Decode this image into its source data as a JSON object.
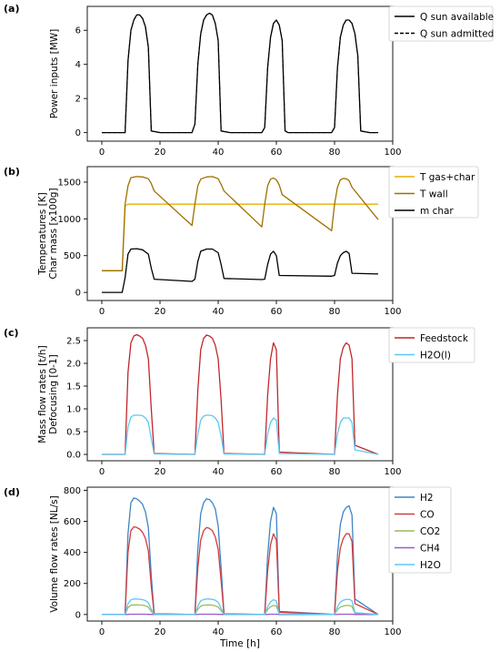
{
  "chart_data": [
    {
      "panel_label": "(a)",
      "type": "line",
      "xlabel": "",
      "ylabel": "Power inputs [MW]",
      "xlim": [
        -5,
        100
      ],
      "ylim": [
        -0.5,
        7.4
      ],
      "xticks": [
        0,
        20,
        40,
        60,
        80,
        100
      ],
      "yticks": [
        0,
        2,
        4,
        6
      ],
      "grid": false,
      "legend_position": "right",
      "series": [
        {
          "name": "Q sun available",
          "style": "solid",
          "color": "#000000",
          "x": [
            0,
            8,
            9,
            10,
            11,
            12,
            13,
            14,
            15,
            16,
            17,
            20,
            31,
            32,
            33,
            34,
            35,
            36,
            37,
            38,
            39,
            40,
            41,
            44,
            55,
            56,
            57,
            58,
            59,
            60,
            61,
            62,
            63,
            64,
            65,
            68,
            79,
            80,
            81,
            82,
            83,
            84,
            85,
            86,
            87,
            88,
            89,
            92,
            95
          ],
          "y": [
            0,
            0,
            4.2,
            6.0,
            6.6,
            6.9,
            6.9,
            6.7,
            6.2,
            5.0,
            0.1,
            0,
            0,
            0.5,
            4.0,
            5.8,
            6.6,
            6.9,
            7.0,
            6.9,
            6.4,
            5.4,
            0.1,
            0,
            0,
            0.3,
            3.8,
            5.6,
            6.4,
            6.6,
            6.3,
            5.4,
            0.1,
            0,
            0,
            0,
            0,
            0.3,
            3.8,
            5.6,
            6.3,
            6.6,
            6.6,
            6.4,
            5.8,
            4.5,
            0.1,
            0,
            0
          ]
        },
        {
          "name": "Q sun admitted",
          "style": "dashed",
          "color": "#000000",
          "x": [
            0,
            8,
            9,
            10,
            11,
            12,
            13,
            14,
            15,
            16,
            17,
            20,
            31,
            32,
            33,
            34,
            35,
            36,
            37,
            38,
            39,
            40,
            41,
            44,
            55,
            56,
            57,
            58,
            59,
            60,
            61,
            62,
            63,
            64,
            65,
            68,
            79,
            80,
            81,
            82,
            83,
            84,
            85,
            86,
            87,
            88,
            89,
            92,
            95
          ],
          "y": [
            0,
            0,
            4.2,
            6.0,
            6.6,
            6.9,
            6.9,
            6.7,
            6.2,
            5.0,
            0.1,
            0,
            0,
            0.5,
            4.0,
            5.8,
            6.6,
            6.9,
            7.0,
            6.9,
            6.4,
            5.4,
            0.1,
            0,
            0,
            0.3,
            3.8,
            5.6,
            6.4,
            6.6,
            6.3,
            5.4,
            0.1,
            0,
            0,
            0,
            0,
            0.3,
            3.8,
            5.6,
            6.3,
            6.6,
            6.6,
            6.4,
            5.8,
            4.5,
            0.1,
            0,
            0
          ]
        }
      ]
    },
    {
      "panel_label": "(b)",
      "type": "line",
      "xlabel": "",
      "ylabel": "Temperatures [K]\nChar mass [x100g]",
      "xlim": [
        -5,
        100
      ],
      "ylim": [
        -110,
        1710
      ],
      "xticks": [
        0,
        20,
        40,
        60,
        80,
        100
      ],
      "yticks": [
        0,
        500,
        1000,
        1500
      ],
      "grid": false,
      "legend_position": "right",
      "series": [
        {
          "name": "T gas+char",
          "color": "#e6b000",
          "x": [
            0,
            7,
            8,
            9,
            10,
            18,
            32,
            33,
            34,
            42,
            56,
            57,
            58,
            65,
            80,
            81,
            82,
            89,
            95
          ],
          "y": [
            295,
            295,
            1180,
            1200,
            1200,
            1200,
            1200,
            1200,
            1200,
            1200,
            1200,
            1200,
            1200,
            1200,
            1200,
            1200,
            1200,
            1200,
            1200
          ]
        },
        {
          "name": "T wall",
          "color": "#9e7000",
          "x": [
            0,
            7,
            8,
            9,
            10,
            12,
            14,
            16,
            17,
            18,
            31,
            32,
            33,
            34,
            36,
            38,
            40,
            41,
            42,
            55,
            56,
            57,
            58,
            59,
            60,
            61,
            62,
            79,
            80,
            81,
            82,
            83,
            84,
            85,
            86,
            95
          ],
          "y": [
            295,
            295,
            1200,
            1450,
            1560,
            1575,
            1570,
            1545,
            1480,
            1380,
            910,
            1200,
            1450,
            1540,
            1570,
            1575,
            1545,
            1470,
            1380,
            890,
            1200,
            1450,
            1540,
            1555,
            1530,
            1460,
            1330,
            840,
            1200,
            1430,
            1530,
            1550,
            1545,
            1520,
            1430,
            990
          ]
        },
        {
          "name": "m char",
          "color": "#000000",
          "x": [
            0,
            7,
            8,
            9,
            10,
            12,
            14,
            16,
            17,
            18,
            31,
            32,
            33,
            34,
            36,
            38,
            40,
            41,
            42,
            55,
            56,
            57,
            58,
            59,
            60,
            61,
            79,
            80,
            81,
            82,
            83,
            84,
            85,
            86,
            95
          ],
          "y": [
            0,
            0,
            200,
            520,
            590,
            595,
            580,
            520,
            330,
            180,
            150,
            180,
            420,
            560,
            590,
            590,
            540,
            380,
            190,
            175,
            180,
            380,
            520,
            560,
            500,
            230,
            220,
            230,
            400,
            500,
            540,
            560,
            530,
            260,
            250
          ]
        }
      ]
    },
    {
      "panel_label": "(c)",
      "type": "line",
      "xlabel": "",
      "ylabel": "Mass flow rates [t/h]\nDefocusing [0-1]",
      "xlim": [
        -5,
        100
      ],
      "ylim": [
        -0.14,
        2.78
      ],
      "xticks": [
        0,
        20,
        40,
        60,
        80,
        100
      ],
      "yticks": [
        0.0,
        0.5,
        1.0,
        1.5,
        2.0,
        2.5
      ],
      "grid": false,
      "legend_position": "right",
      "series": [
        {
          "name": "Feedstock",
          "color": "#c0272d",
          "x": [
            0,
            8,
            9,
            10,
            11,
            12,
            13,
            14,
            15,
            16,
            17,
            18,
            32,
            33,
            34,
            35,
            36,
            37,
            38,
            39,
            40,
            41,
            42,
            56,
            57,
            58,
            59,
            60,
            61,
            80,
            81,
            82,
            83,
            84,
            85,
            86,
            87,
            95
          ],
          "y": [
            0,
            0,
            1.8,
            2.45,
            2.6,
            2.63,
            2.6,
            2.55,
            2.4,
            2.1,
            1.0,
            0.02,
            0,
            1.4,
            2.3,
            2.55,
            2.62,
            2.6,
            2.55,
            2.4,
            2.1,
            1.2,
            0.02,
            0,
            1.3,
            2.1,
            2.45,
            2.3,
            0.05,
            0,
            1.3,
            2.1,
            2.35,
            2.45,
            2.4,
            2.1,
            0.2,
            0
          ]
        },
        {
          "name": "H2O(l)",
          "color": "#5bc8f5",
          "x": [
            0,
            8,
            9,
            10,
            11,
            12,
            13,
            14,
            15,
            16,
            17,
            18,
            32,
            33,
            34,
            35,
            36,
            37,
            38,
            39,
            40,
            41,
            42,
            56,
            57,
            58,
            59,
            60,
            61,
            80,
            81,
            82,
            83,
            84,
            85,
            86,
            87,
            95
          ],
          "y": [
            0,
            0,
            0.6,
            0.82,
            0.86,
            0.86,
            0.86,
            0.85,
            0.8,
            0.7,
            0.35,
            0.01,
            0,
            0.45,
            0.75,
            0.84,
            0.86,
            0.86,
            0.85,
            0.8,
            0.7,
            0.4,
            0.01,
            0,
            0.45,
            0.7,
            0.8,
            0.75,
            0.02,
            0,
            0.45,
            0.7,
            0.8,
            0.8,
            0.8,
            0.7,
            0.1,
            0
          ]
        }
      ]
    },
    {
      "panel_label": "(d)",
      "type": "line",
      "xlabel": "Time [h]",
      "ylabel": "Volume flow rates [NL/s]",
      "xlim": [
        -5,
        100
      ],
      "ylim": [
        -42,
        820
      ],
      "xticks": [
        0,
        20,
        40,
        60,
        80,
        100
      ],
      "yticks": [
        0,
        200,
        400,
        600,
        800
      ],
      "grid": false,
      "legend_position": "right",
      "series": [
        {
          "name": "H2",
          "color": "#3d85c6",
          "x": [
            0,
            8,
            9,
            10,
            11,
            12,
            13,
            14,
            15,
            16,
            17,
            18,
            32,
            33,
            34,
            35,
            36,
            37,
            38,
            39,
            40,
            41,
            42,
            56,
            57,
            58,
            59,
            60,
            61,
            80,
            81,
            82,
            83,
            84,
            85,
            86,
            87,
            95
          ],
          "y": [
            0,
            0,
            520,
            720,
            750,
            745,
            730,
            710,
            660,
            560,
            250,
            5,
            0,
            420,
            650,
            720,
            745,
            740,
            720,
            680,
            570,
            300,
            5,
            0,
            380,
            600,
            690,
            650,
            20,
            0,
            380,
            580,
            660,
            690,
            700,
            640,
            100,
            0
          ]
        },
        {
          "name": "CO",
          "color": "#d23c3c",
          "x": [
            0,
            8,
            9,
            10,
            11,
            12,
            13,
            14,
            15,
            16,
            17,
            18,
            32,
            33,
            34,
            35,
            36,
            37,
            38,
            39,
            40,
            41,
            42,
            56,
            57,
            58,
            59,
            60,
            61,
            80,
            81,
            82,
            83,
            84,
            85,
            86,
            87,
            95
          ],
          "y": [
            0,
            0,
            400,
            540,
            565,
            560,
            550,
            530,
            490,
            410,
            180,
            3,
            0,
            300,
            480,
            540,
            560,
            555,
            540,
            500,
            420,
            220,
            3,
            0,
            280,
            450,
            520,
            480,
            15,
            0,
            280,
            430,
            490,
            520,
            520,
            470,
            70,
            0
          ]
        },
        {
          "name": "CO2",
          "color": "#9bbb59",
          "x": [
            0,
            8,
            9,
            10,
            11,
            12,
            13,
            14,
            15,
            16,
            17,
            18,
            32,
            33,
            34,
            35,
            36,
            37,
            38,
            39,
            40,
            41,
            42,
            56,
            57,
            58,
            59,
            60,
            61,
            80,
            81,
            82,
            83,
            84,
            85,
            86,
            87,
            95
          ],
          "y": [
            0,
            0,
            45,
            60,
            62,
            62,
            61,
            60,
            56,
            47,
            20,
            0,
            0,
            35,
            54,
            60,
            62,
            62,
            60,
            56,
            48,
            25,
            0,
            0,
            32,
            50,
            58,
            54,
            2,
            0,
            32,
            48,
            55,
            58,
            58,
            52,
            8,
            0
          ]
        },
        {
          "name": "CH4",
          "color": "#9b59d0",
          "x": [
            0,
            8,
            9,
            10,
            11,
            12,
            13,
            14,
            15,
            16,
            17,
            18,
            32,
            33,
            34,
            35,
            36,
            37,
            38,
            39,
            40,
            41,
            42,
            56,
            57,
            58,
            59,
            60,
            61,
            80,
            81,
            82,
            83,
            84,
            85,
            86,
            87,
            95
          ],
          "y": [
            0,
            0,
            1,
            2,
            2,
            2,
            2,
            2,
            2,
            1,
            1,
            0,
            0,
            1,
            2,
            2,
            2,
            2,
            2,
            2,
            1,
            1,
            0,
            0,
            1,
            2,
            2,
            2,
            0,
            0,
            1,
            2,
            2,
            2,
            2,
            2,
            0,
            0
          ]
        },
        {
          "name": "H2O",
          "color": "#5bc8f5",
          "x": [
            0,
            8,
            9,
            10,
            11,
            12,
            13,
            14,
            15,
            16,
            17,
            18,
            32,
            33,
            34,
            35,
            36,
            37,
            38,
            39,
            40,
            41,
            42,
            56,
            57,
            58,
            59,
            60,
            61,
            80,
            81,
            82,
            83,
            84,
            85,
            86,
            87,
            95
          ],
          "y": [
            0,
            0,
            70,
            95,
            100,
            100,
            98,
            96,
            90,
            75,
            35,
            1,
            0,
            55,
            88,
            97,
            100,
            100,
            97,
            92,
            78,
            40,
            1,
            0,
            50,
            82,
            95,
            88,
            3,
            0,
            50,
            80,
            92,
            97,
            98,
            88,
            12,
            0
          ]
        }
      ]
    }
  ]
}
